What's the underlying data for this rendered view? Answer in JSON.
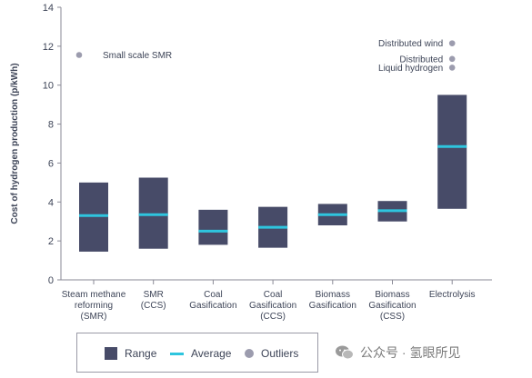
{
  "chart_data": {
    "type": "range-bar",
    "ylabel": "Cost of hydrogen production (p/kWh)",
    "ylim": [
      0,
      14
    ],
    "yticks": [
      0,
      2,
      4,
      6,
      8,
      10,
      12,
      14
    ],
    "grid": false,
    "categories": [
      [
        "Steam methane",
        "reforming",
        "(SMR)"
      ],
      [
        "SMR",
        "(CCS)"
      ],
      [
        "Coal",
        "Gasification"
      ],
      [
        "Coal",
        "Gasification",
        "(CCS)"
      ],
      [
        "Biomass",
        "Gasification"
      ],
      [
        "Biomass",
        "Gasification",
        "(CSS)"
      ],
      [
        "Electrolysis"
      ]
    ],
    "ranges": [
      {
        "min": 1.45,
        "max": 5.0,
        "average": 3.3
      },
      {
        "min": 1.6,
        "max": 5.25,
        "average": 3.35
      },
      {
        "min": 1.8,
        "max": 3.6,
        "average": 2.5
      },
      {
        "min": 1.65,
        "max": 3.75,
        "average": 2.7
      },
      {
        "min": 2.8,
        "max": 3.9,
        "average": 3.35
      },
      {
        "min": 3.0,
        "max": 4.05,
        "average": 3.55
      },
      {
        "min": 3.65,
        "max": 9.5,
        "average": 6.85
      }
    ],
    "outliers": [
      {
        "category_index": 0,
        "value": 11.55,
        "label": "Small scale SMR",
        "label_side": "right"
      },
      {
        "category_index": 6,
        "value": 12.15,
        "label": "Distributed wind",
        "label_side": "left"
      },
      {
        "category_index": 6,
        "value": 11.35,
        "label": "Distributed",
        "label_side": "left"
      },
      {
        "category_index": 6,
        "value": 10.9,
        "label": "Liquid hydrogen",
        "label_side": "left"
      }
    ],
    "colors": {
      "range": "#474b68",
      "average": "#2ec5de",
      "outlier": "#9c9cae"
    },
    "legend_position": "bottom-left"
  },
  "legend": {
    "range": "Range",
    "average": "Average",
    "outliers": "Outliers"
  },
  "watermark": "公众号 · 氢眼所见"
}
